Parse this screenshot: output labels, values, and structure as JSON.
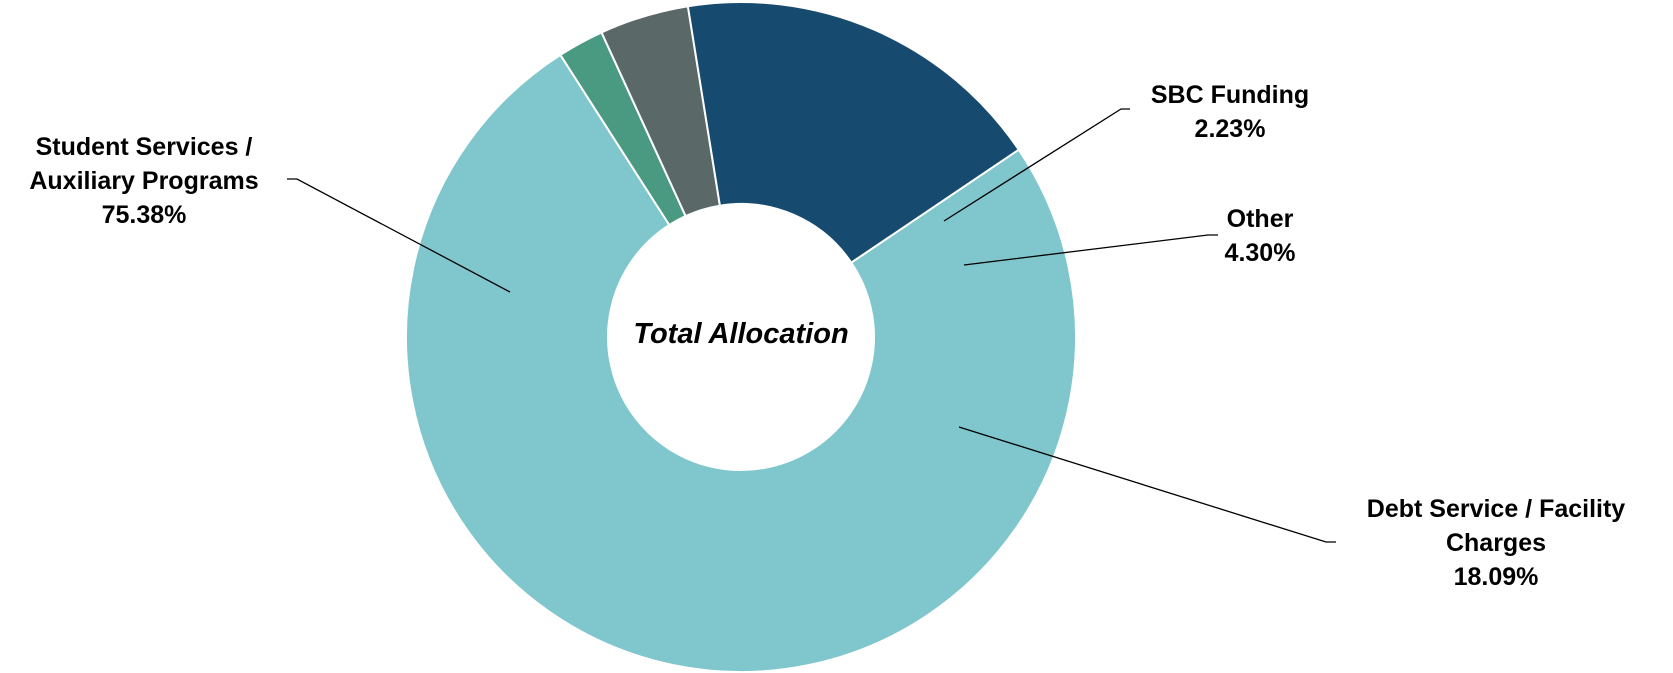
{
  "chart_data": {
    "type": "donut",
    "center_label": "Total Allocation",
    "categories": [
      "Student Services / Auxiliary Programs",
      "SBC Funding",
      "Other",
      "Debt Service / Facility Charges"
    ],
    "values": [
      75.38,
      2.23,
      4.3,
      18.09
    ],
    "value_labels": [
      "75.38%",
      "2.23%",
      "4.30%",
      "18.09%"
    ],
    "colors": [
      "#7fc6cd",
      "#4a9a82",
      "#5a6868",
      "#164a6e"
    ]
  }
}
